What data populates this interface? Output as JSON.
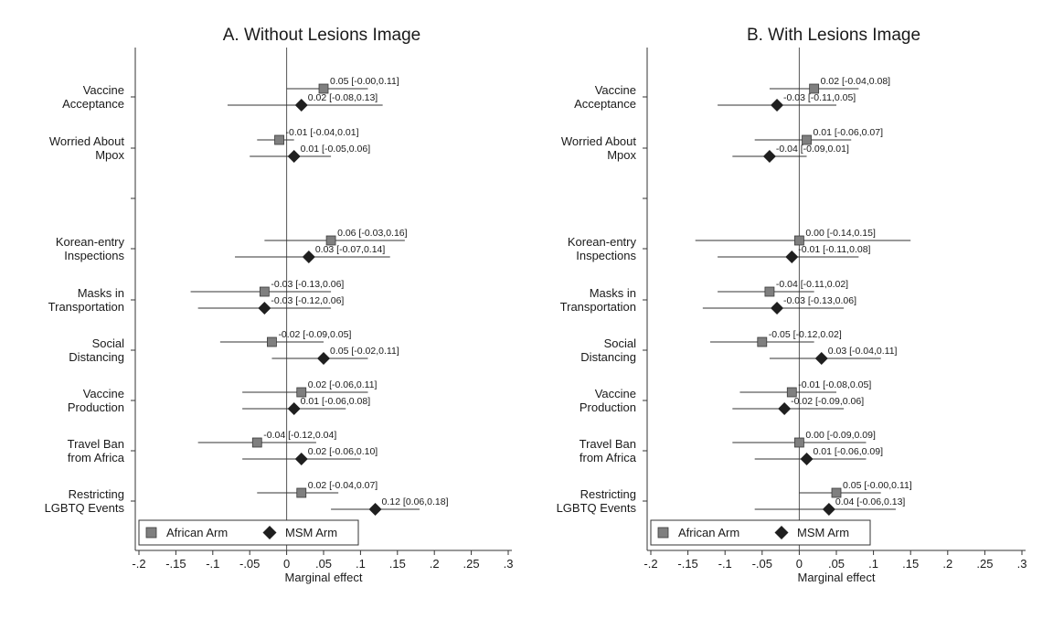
{
  "chart_data": [
    {
      "type": "scatter",
      "subtype": "coefficient-plot-with-ci",
      "title": "A. Without Lesions Image",
      "xlabel": "Marginal effect",
      "ylabel": "",
      "xlim": [
        -0.2,
        0.3
      ],
      "x_tick_labels": [
        "-.2",
        "-.15",
        "-.1",
        "-.05",
        "0",
        ".05",
        ".1",
        ".15",
        ".2",
        ".25",
        ".3"
      ],
      "x_ticks": [
        -0.2,
        -0.15,
        -0.1,
        -0.05,
        0,
        0.05,
        0.1,
        0.15,
        0.2,
        0.25,
        0.3
      ],
      "reference_line_x": 0,
      "legend": {
        "placement": "bottom-left",
        "entries": [
          "African Arm",
          "MSM Arm"
        ]
      },
      "categories": [
        {
          "label": [
            "Vaccine",
            "Acceptance"
          ],
          "group": 0
        },
        {
          "label": [
            "Worried About",
            "Mpox"
          ],
          "group": 0
        },
        {
          "label": [
            "Korean-entry",
            "Inspections"
          ],
          "group": 1
        },
        {
          "label": [
            "Masks in",
            "Transportation"
          ],
          "group": 1
        },
        {
          "label": [
            "Social",
            "Distancing"
          ],
          "group": 1
        },
        {
          "label": [
            "Vaccine",
            "Production"
          ],
          "group": 1
        },
        {
          "label": [
            "Travel Ban",
            "from Africa"
          ],
          "group": 1
        },
        {
          "label": [
            "Restricting",
            "LGBTQ Events"
          ],
          "group": 1
        }
      ],
      "series": [
        {
          "name": "African Arm",
          "marker": "square",
          "color": "#7f7f7f",
          "points": [
            {
              "est": 0.05,
              "lo": -0.0,
              "hi": 0.11,
              "label": "0.05 [-0.00,0.11]"
            },
            {
              "est": -0.01,
              "lo": -0.04,
              "hi": 0.01,
              "label": "-0.01 [-0.04,0.01]"
            },
            {
              "est": 0.06,
              "lo": -0.03,
              "hi": 0.16,
              "label": "0.06 [-0.03,0.16]"
            },
            {
              "est": -0.03,
              "lo": -0.13,
              "hi": 0.06,
              "label": "-0.03 [-0.13,0.06]"
            },
            {
              "est": -0.02,
              "lo": -0.09,
              "hi": 0.05,
              "label": "-0.02 [-0.09,0.05]"
            },
            {
              "est": 0.02,
              "lo": -0.06,
              "hi": 0.11,
              "label": "0.02 [-0.06,0.11]"
            },
            {
              "est": -0.04,
              "lo": -0.12,
              "hi": 0.04,
              "label": "-0.04 [-0.12,0.04]"
            },
            {
              "est": 0.02,
              "lo": -0.04,
              "hi": 0.07,
              "label": "0.02 [-0.04,0.07]"
            }
          ]
        },
        {
          "name": "MSM Arm",
          "marker": "diamond",
          "color": "#1f1f1f",
          "points": [
            {
              "est": 0.02,
              "lo": -0.08,
              "hi": 0.13,
              "label": "0.02 [-0.08,0.13]"
            },
            {
              "est": 0.01,
              "lo": -0.05,
              "hi": 0.06,
              "label": "0.01 [-0.05,0.06]"
            },
            {
              "est": 0.03,
              "lo": -0.07,
              "hi": 0.14,
              "label": "0.03 [-0.07,0.14]"
            },
            {
              "est": -0.03,
              "lo": -0.12,
              "hi": 0.06,
              "label": "-0.03 [-0.12,0.06]"
            },
            {
              "est": 0.05,
              "lo": -0.02,
              "hi": 0.11,
              "label": "0.05 [-0.02,0.11]"
            },
            {
              "est": 0.01,
              "lo": -0.06,
              "hi": 0.08,
              "label": "0.01 [-0.06,0.08]"
            },
            {
              "est": 0.02,
              "lo": -0.06,
              "hi": 0.1,
              "label": "0.02 [-0.06,0.10]"
            },
            {
              "est": 0.12,
              "lo": 0.06,
              "hi": 0.18,
              "label": "0.12 [0.06,0.18]"
            }
          ]
        }
      ]
    },
    {
      "type": "scatter",
      "subtype": "coefficient-plot-with-ci",
      "title": "B. With Lesions Image",
      "xlabel": "Marginal effect",
      "ylabel": "",
      "xlim": [
        -0.2,
        0.3
      ],
      "x_tick_labels": [
        "-.2",
        "-.15",
        "-.1",
        "-.05",
        "0",
        ".05",
        ".1",
        ".15",
        ".2",
        ".25",
        ".3"
      ],
      "x_ticks": [
        -0.2,
        -0.15,
        -0.1,
        -0.05,
        0,
        0.05,
        0.1,
        0.15,
        0.2,
        0.25,
        0.3
      ],
      "reference_line_x": 0,
      "legend": {
        "placement": "bottom-left",
        "entries": [
          "African Arm",
          "MSM Arm"
        ]
      },
      "categories": [
        {
          "label": [
            "Vaccine",
            "Acceptance"
          ],
          "group": 0
        },
        {
          "label": [
            "Worried About",
            "Mpox"
          ],
          "group": 0
        },
        {
          "label": [
            "Korean-entry",
            "Inspections"
          ],
          "group": 1
        },
        {
          "label": [
            "Masks in",
            "Transportation"
          ],
          "group": 1
        },
        {
          "label": [
            "Social",
            "Distancing"
          ],
          "group": 1
        },
        {
          "label": [
            "Vaccine",
            "Production"
          ],
          "group": 1
        },
        {
          "label": [
            "Travel Ban",
            "from Africa"
          ],
          "group": 1
        },
        {
          "label": [
            "Restricting",
            "LGBTQ Events"
          ],
          "group": 1
        }
      ],
      "series": [
        {
          "name": "African Arm",
          "marker": "square",
          "color": "#7f7f7f",
          "points": [
            {
              "est": 0.02,
              "lo": -0.04,
              "hi": 0.08,
              "label": "0.02 [-0.04,0.08]"
            },
            {
              "est": 0.01,
              "lo": -0.06,
              "hi": 0.07,
              "label": "0.01 [-0.06,0.07]"
            },
            {
              "est": 0.0,
              "lo": -0.14,
              "hi": 0.15,
              "label": "0.00 [-0.14,0.15]"
            },
            {
              "est": -0.04,
              "lo": -0.11,
              "hi": 0.02,
              "label": "-0.04 [-0.11,0.02]"
            },
            {
              "est": -0.05,
              "lo": -0.12,
              "hi": 0.02,
              "label": "-0.05 [-0.12,0.02]"
            },
            {
              "est": -0.01,
              "lo": -0.08,
              "hi": 0.05,
              "label": "-0.01 [-0.08,0.05]"
            },
            {
              "est": 0.0,
              "lo": -0.09,
              "hi": 0.09,
              "label": "0.00 [-0.09,0.09]"
            },
            {
              "est": 0.05,
              "lo": -0.0,
              "hi": 0.11,
              "label": "0.05 [-0.00,0.11]"
            }
          ]
        },
        {
          "name": "MSM Arm",
          "marker": "diamond",
          "color": "#1f1f1f",
          "points": [
            {
              "est": -0.03,
              "lo": -0.11,
              "hi": 0.05,
              "label": "-0.03 [-0.11,0.05]"
            },
            {
              "est": -0.04,
              "lo": -0.09,
              "hi": 0.01,
              "label": "-0.04 [-0.09,0.01]"
            },
            {
              "est": -0.01,
              "lo": -0.11,
              "hi": 0.08,
              "label": "-0.01 [-0.11,0.08]"
            },
            {
              "est": -0.03,
              "lo": -0.13,
              "hi": 0.06,
              "label": "-0.03 [-0.13,0.06]"
            },
            {
              "est": 0.03,
              "lo": -0.04,
              "hi": 0.11,
              "label": "0.03 [-0.04,0.11]"
            },
            {
              "est": -0.02,
              "lo": -0.09,
              "hi": 0.06,
              "label": "-0.02 [-0.09,0.06]"
            },
            {
              "est": 0.01,
              "lo": -0.06,
              "hi": 0.09,
              "label": "0.01 [-0.06,0.09]"
            },
            {
              "est": 0.04,
              "lo": -0.06,
              "hi": 0.13,
              "label": "0.04 [-0.06,0.13]"
            }
          ]
        }
      ]
    }
  ]
}
